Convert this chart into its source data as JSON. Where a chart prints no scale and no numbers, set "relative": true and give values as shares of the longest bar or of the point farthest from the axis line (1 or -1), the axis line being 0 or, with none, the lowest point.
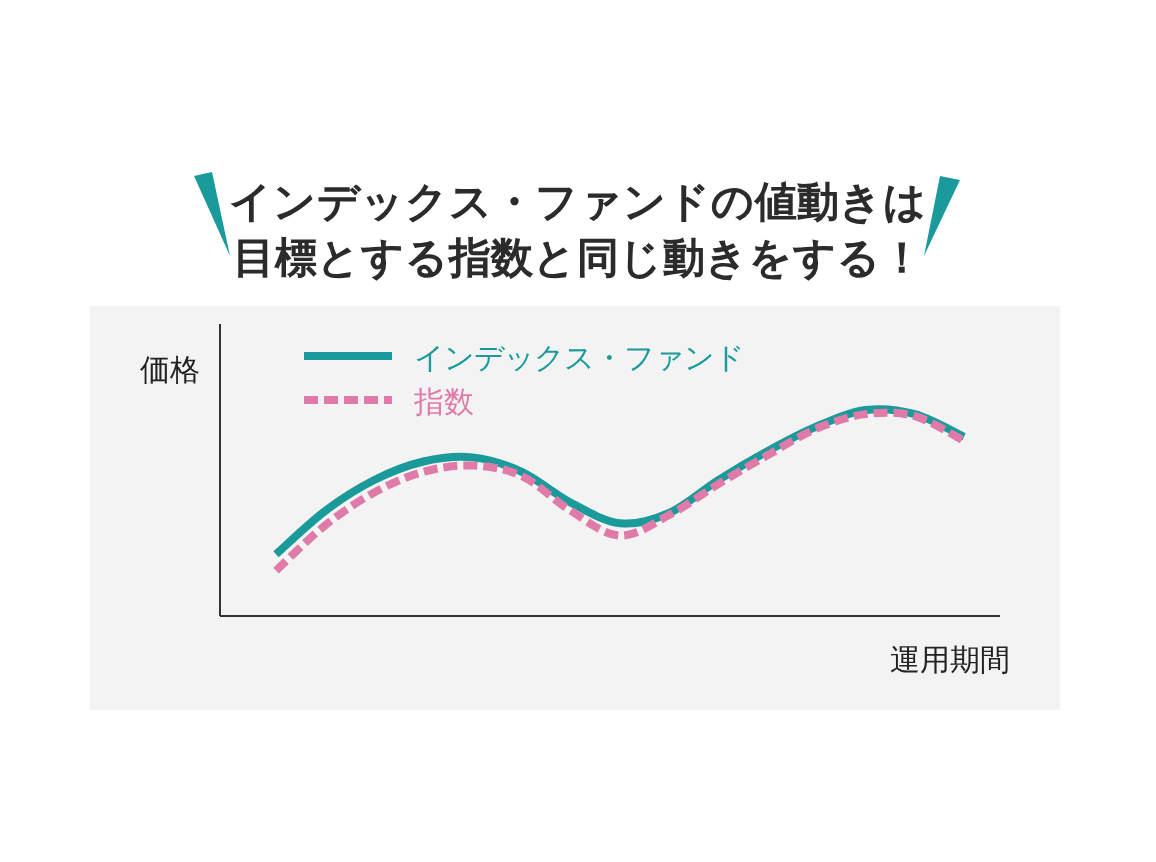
{
  "chart_data": {
    "type": "line",
    "title": "インデックス・ファンドの値動きは目標とする指数と同じ動きをする！",
    "xlabel": "運用期間",
    "ylabel": "価格",
    "relative": true,
    "legend": "top left",
    "categories": [
      null,
      null,
      null,
      null,
      null,
      null,
      null,
      null,
      null,
      null,
      null,
      null,
      null,
      null,
      null
    ],
    "series": [
      {
        "name": "インデックス・ファンド",
        "color": "#1a9a9a",
        "line_style": "solid",
        "values": [
          0.3,
          0.51,
          0.66,
          0.75,
          0.77,
          0.7,
          0.55,
          0.45,
          0.5,
          0.66,
          0.8,
          0.92,
          1,
          0.98,
          0.87
        ]
      },
      {
        "name": "指数",
        "color": "#e07aa8",
        "line_style": "dashed",
        "values": [
          0.22,
          0.44,
          0.6,
          0.7,
          0.73,
          0.68,
          0.51,
          0.39,
          0.49,
          0.64,
          0.78,
          0.91,
          0.98,
          0.97,
          0.85
        ]
      }
    ]
  }
}
